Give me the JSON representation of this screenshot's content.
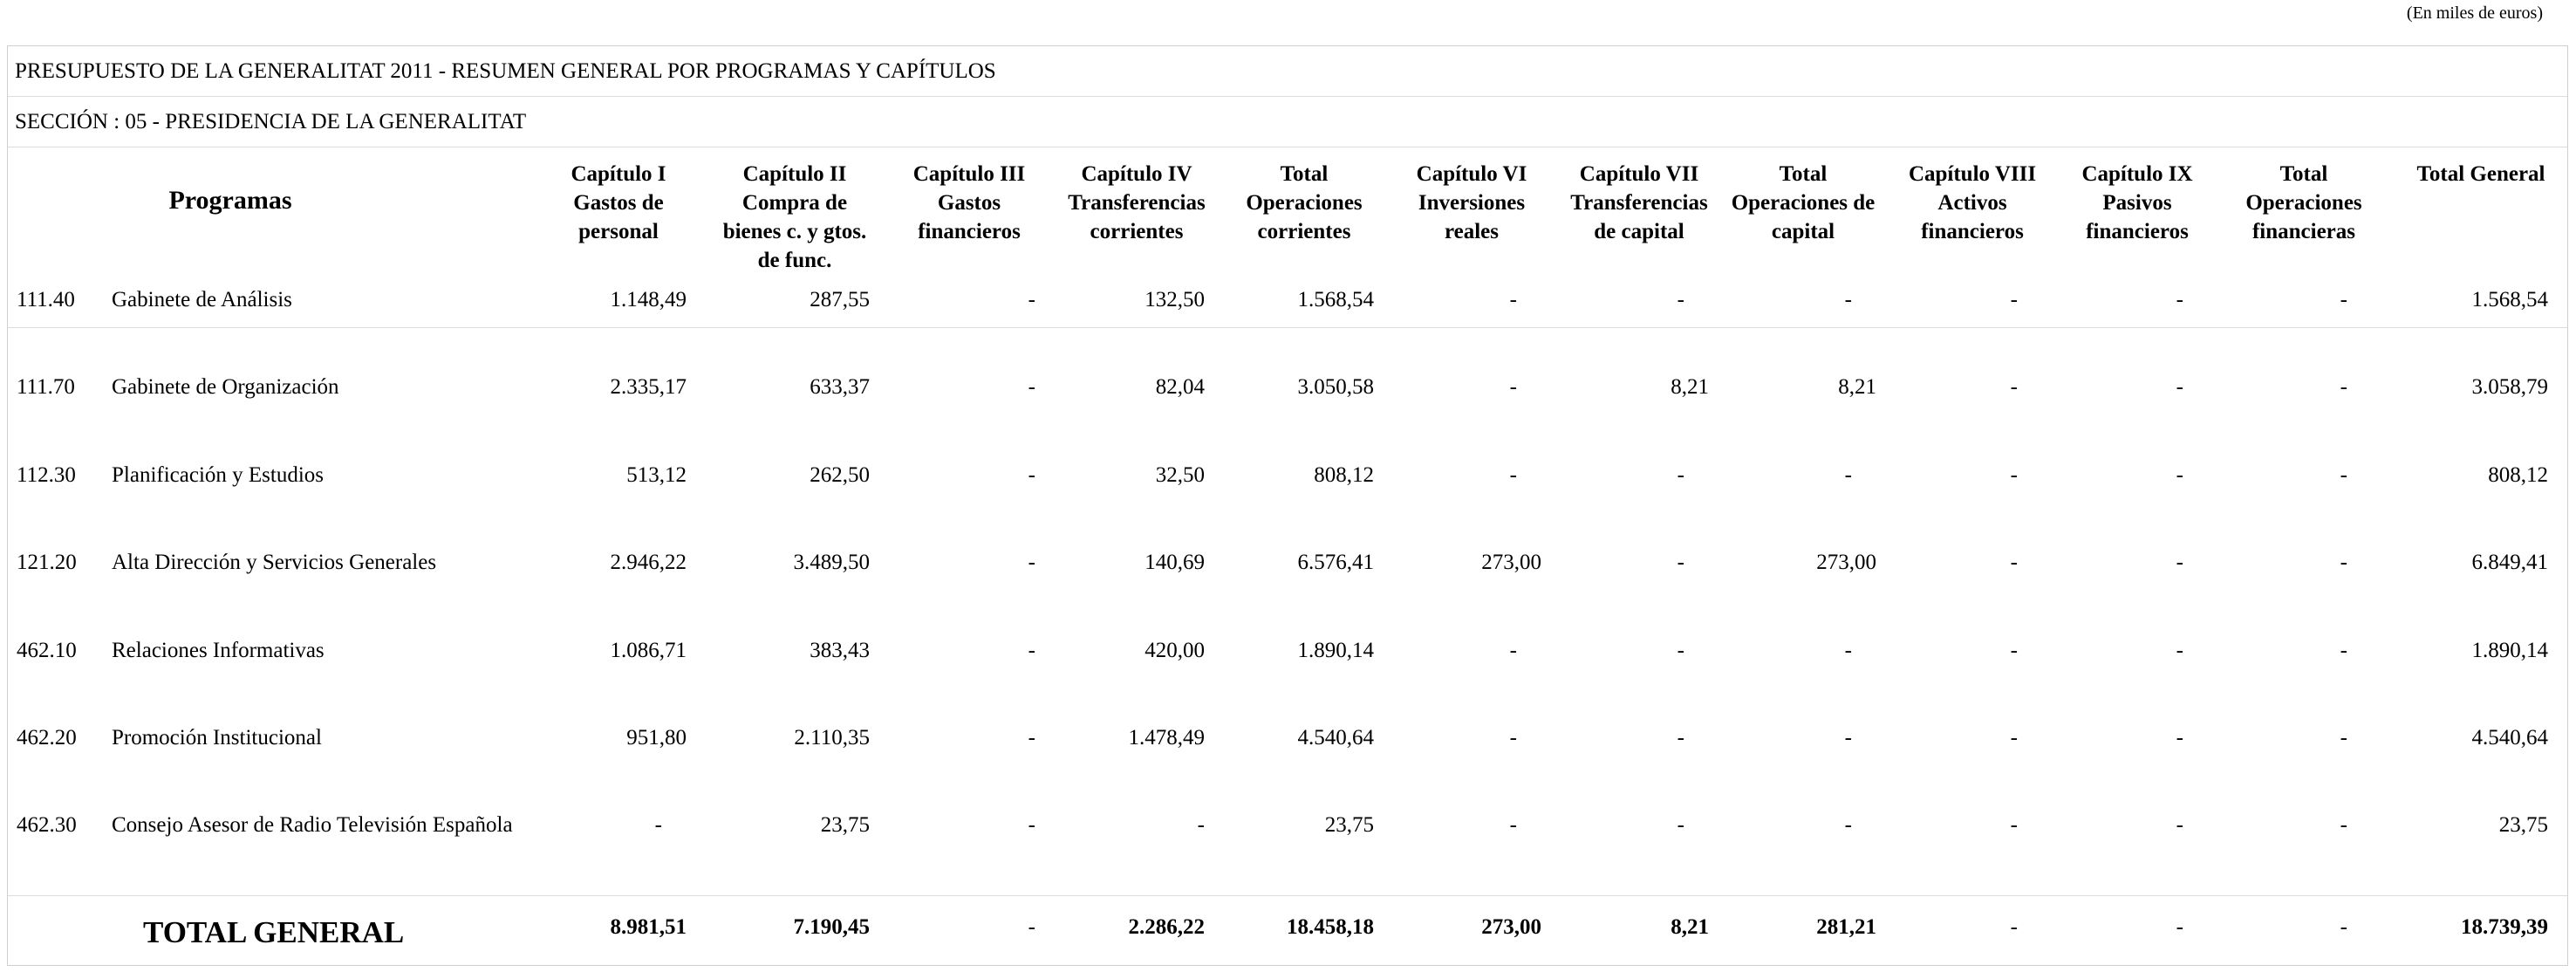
{
  "unit_note": "(En miles de euros)",
  "title": "PRESUPUESTO DE LA GENERALITAT 2011 - RESUMEN GENERAL POR PROGRAMAS Y CAPÍTULOS",
  "section": "SECCIÓN : 05  -  PRESIDENCIA DE LA GENERALITAT",
  "headers": {
    "programas": "Programas",
    "columns": [
      [
        "Capítulo I",
        "Gastos de",
        "personal"
      ],
      [
        "Capítulo II",
        "Compra de",
        "bienes c. y gtos.",
        "de func."
      ],
      [
        "Capítulo III",
        "Gastos",
        "financieros"
      ],
      [
        "Capítulo IV",
        "Transferencias",
        "corrientes"
      ],
      [
        "Total",
        "Operaciones",
        "corrientes"
      ],
      [
        "Capítulo VI",
        "Inversiones",
        "reales"
      ],
      [
        "Capítulo VII",
        "Transferencias",
        "de capital"
      ],
      [
        "Total",
        "Operaciones de",
        "capital"
      ],
      [
        "Capítulo VIII",
        "Activos",
        "financieros"
      ],
      [
        "Capítulo IX",
        "Pasivos",
        "financieros"
      ],
      [
        "Total",
        "Operaciones",
        "financieras"
      ],
      [
        "Total General"
      ]
    ]
  },
  "rows": [
    {
      "code": "111.40",
      "name": "Gabinete de Análisis",
      "values": [
        "1.148,49",
        "287,55",
        "-",
        "132,50",
        "1.568,54",
        "-",
        "-",
        "-",
        "-",
        "-",
        "-",
        "1.568,54"
      ]
    },
    {
      "code": "111.70",
      "name": "Gabinete de Organización",
      "values": [
        "2.335,17",
        "633,37",
        "-",
        "82,04",
        "3.050,58",
        "-",
        "8,21",
        "8,21",
        "-",
        "-",
        "-",
        "3.058,79"
      ]
    },
    {
      "code": "112.30",
      "name": "Planificación y Estudios",
      "values": [
        "513,12",
        "262,50",
        "-",
        "32,50",
        "808,12",
        "-",
        "-",
        "-",
        "-",
        "-",
        "-",
        "808,12"
      ]
    },
    {
      "code": "121.20",
      "name": "Alta Dirección y Servicios Generales",
      "values": [
        "2.946,22",
        "3.489,50",
        "-",
        "140,69",
        "6.576,41",
        "273,00",
        "-",
        "273,00",
        "-",
        "-",
        "-",
        "6.849,41"
      ]
    },
    {
      "code": "462.10",
      "name": "Relaciones Informativas",
      "values": [
        "1.086,71",
        "383,43",
        "-",
        "420,00",
        "1.890,14",
        "-",
        "-",
        "-",
        "-",
        "-",
        "-",
        "1.890,14"
      ]
    },
    {
      "code": "462.20",
      "name": "Promoción Institucional",
      "values": [
        "951,80",
        "2.110,35",
        "-",
        "1.478,49",
        "4.540,64",
        "-",
        "-",
        "-",
        "-",
        "-",
        "-",
        "4.540,64"
      ]
    },
    {
      "code": "462.30",
      "name": "Consejo Asesor de Radio Televisión Española",
      "values": [
        "-",
        "23,75",
        "-",
        "-",
        "23,75",
        "-",
        "-",
        "-",
        "-",
        "-",
        "-",
        "23,75"
      ]
    }
  ],
  "total": {
    "label": "TOTAL GENERAL",
    "values": [
      "8.981,51",
      "7.190,45",
      "-",
      "2.286,22",
      "18.458,18",
      "273,00",
      "8,21",
      "281,21",
      "-",
      "-",
      "-",
      "18.739,39"
    ]
  }
}
